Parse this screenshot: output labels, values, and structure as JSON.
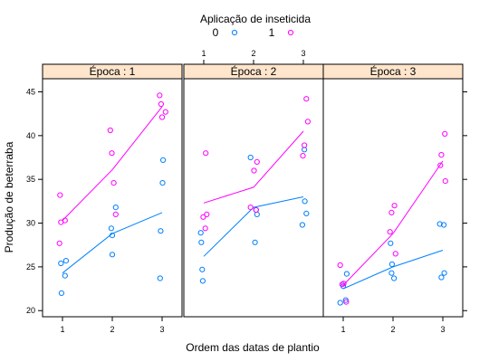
{
  "chart_data": {
    "type": "scatter",
    "legend": {
      "title": "Aplicação de inseticida",
      "placement": "top",
      "entries": [
        {
          "label": "0",
          "color": "#0080ff"
        },
        {
          "label": "1",
          "color": "#ff00ff"
        }
      ]
    },
    "xlabel": "Ordem das datas de plantio",
    "ylabel": "Produção de beterraba",
    "xlim": [
      0.6,
      3.4
    ],
    "ylim": [
      19.3,
      46.5
    ],
    "xticks": [
      1,
      2,
      3
    ],
    "yticks": [
      20,
      25,
      30,
      35,
      40,
      45
    ],
    "panels": [
      {
        "title": "Época : 1",
        "series": [
          {
            "name": "0",
            "color": "#0080ff",
            "points": [
              [
                0.97,
                25.4
              ],
              [
                1.07,
                25.7
              ],
              [
                1.05,
                24.0
              ],
              [
                0.98,
                22.0
              ],
              [
                2.0,
                28.6
              ],
              [
                2.0,
                26.4
              ],
              [
                2.07,
                31.8
              ],
              [
                1.98,
                29.4
              ],
              [
                3.02,
                37.2
              ],
              [
                3.01,
                34.6
              ],
              [
                2.97,
                29.1
              ],
              [
                2.96,
                23.7
              ]
            ],
            "line": [
              [
                1,
                24.3
              ],
              [
                2,
                28.8
              ],
              [
                3,
                31.2
              ]
            ]
          },
          {
            "name": "1",
            "color": "#ff00ff",
            "points": [
              [
                0.95,
                33.2
              ],
              [
                0.97,
                30.1
              ],
              [
                1.05,
                30.3
              ],
              [
                0.94,
                27.7
              ],
              [
                1.96,
                40.6
              ],
              [
                1.99,
                38.0
              ],
              [
                2.03,
                34.6
              ],
              [
                2.07,
                31.0
              ],
              [
                2.95,
                44.6
              ],
              [
                2.98,
                43.6
              ],
              [
                3.07,
                42.7
              ],
              [
                3.0,
                42.1
              ]
            ],
            "line": [
              [
                1,
                30.3
              ],
              [
                2,
                36.1
              ],
              [
                3,
                43.3
              ]
            ]
          }
        ]
      },
      {
        "title": "Época : 2",
        "series": [
          {
            "name": "0",
            "color": "#0080ff",
            "points": [
              [
                0.94,
                28.9
              ],
              [
                0.95,
                27.8
              ],
              [
                0.97,
                24.7
              ],
              [
                0.98,
                23.4
              ],
              [
                1.94,
                37.5
              ],
              [
                2.05,
                31.5
              ],
              [
                2.07,
                31.0
              ],
              [
                2.03,
                27.8
              ],
              [
                3.02,
                38.4
              ],
              [
                3.03,
                32.5
              ],
              [
                3.06,
                31.1
              ],
              [
                2.98,
                29.8
              ]
            ],
            "line": [
              [
                1,
                26.2
              ],
              [
                2,
                31.8
              ],
              [
                3,
                33.0
              ]
            ]
          },
          {
            "name": "1",
            "color": "#ff00ff",
            "points": [
              [
                1.04,
                38.0
              ],
              [
                1.06,
                31.0
              ],
              [
                0.99,
                30.7
              ],
              [
                1.03,
                29.4
              ],
              [
                2.07,
                37.0
              ],
              [
                2.01,
                36.0
              ],
              [
                1.94,
                31.8
              ],
              [
                2.05,
                31.5
              ],
              [
                3.06,
                44.2
              ],
              [
                3.09,
                41.6
              ],
              [
                3.02,
                38.9
              ],
              [
                2.99,
                37.7
              ]
            ],
            "line": [
              [
                1,
                32.3
              ],
              [
                2,
                34.1
              ],
              [
                3,
                40.5
              ]
            ]
          }
        ]
      },
      {
        "title": "Época : 3",
        "series": [
          {
            "name": "0",
            "color": "#0080ff",
            "points": [
              [
                1.07,
                24.2
              ],
              [
                1.0,
                22.8
              ],
              [
                1.05,
                21.2
              ],
              [
                0.94,
                20.9
              ],
              [
                1.95,
                27.7
              ],
              [
                1.98,
                25.3
              ],
              [
                1.97,
                24.3
              ],
              [
                2.02,
                23.7
              ],
              [
                2.94,
                29.9
              ],
              [
                3.02,
                29.8
              ],
              [
                3.03,
                24.3
              ],
              [
                2.97,
                23.8
              ]
            ],
            "line": [
              [
                1,
                22.5
              ],
              [
                2,
                25.0
              ],
              [
                3,
                26.9
              ]
            ]
          },
          {
            "name": "1",
            "color": "#ff00ff",
            "points": [
              [
                0.94,
                25.2
              ],
              [
                0.98,
                23.0
              ],
              [
                1.01,
                23.1
              ],
              [
                1.06,
                21.0
              ],
              [
                2.03,
                32.0
              ],
              [
                1.97,
                31.2
              ],
              [
                1.94,
                29.0
              ],
              [
                2.05,
                26.5
              ],
              [
                2.97,
                37.8
              ],
              [
                3.04,
                40.2
              ],
              [
                2.95,
                36.6
              ],
              [
                3.05,
                34.8
              ]
            ],
            "line": [
              [
                1,
                22.9
              ],
              [
                2,
                28.8
              ],
              [
                3,
                37.1
              ]
            ]
          }
        ]
      }
    ]
  }
}
